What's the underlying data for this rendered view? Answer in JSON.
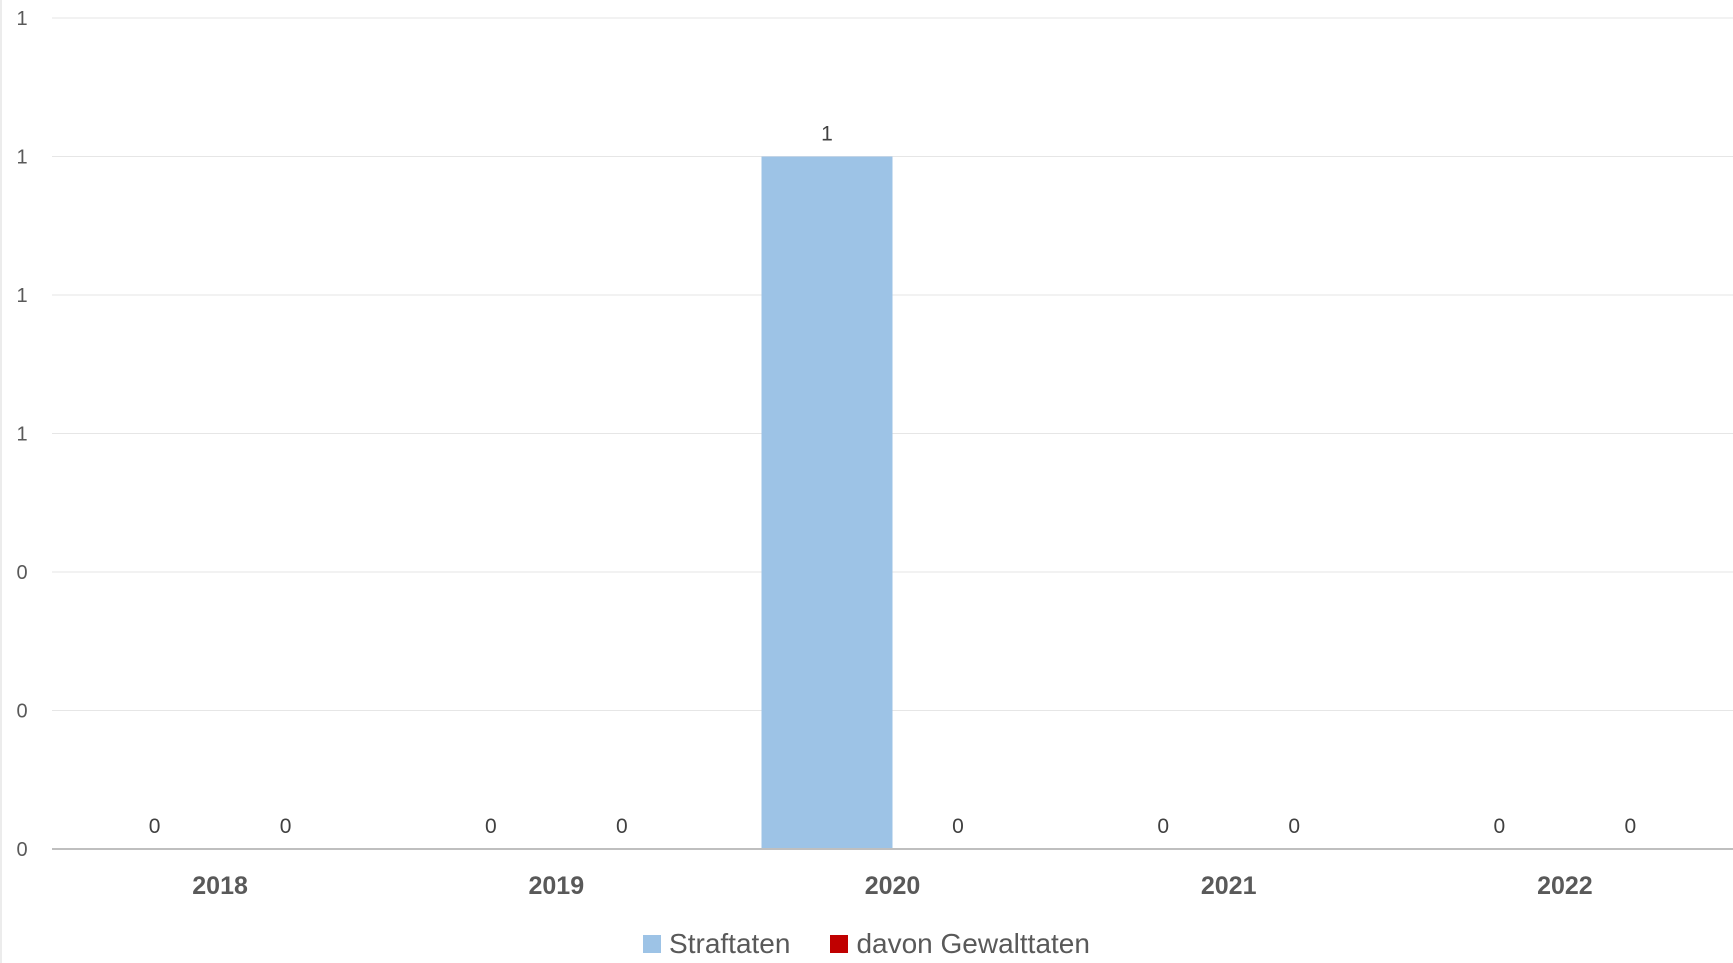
{
  "chart_data": {
    "type": "bar",
    "title": "",
    "xlabel": "",
    "ylabel": "",
    "categories": [
      "2018",
      "2019",
      "2020",
      "2021",
      "2022"
    ],
    "series": [
      {
        "name": "Straftaten",
        "values": [
          0,
          0,
          1,
          0,
          0
        ],
        "color": "#9DC3E6",
        "data_labels": [
          "0",
          "0",
          "1",
          "0",
          "0"
        ]
      },
      {
        "name": "davon Gewalttaten",
        "values": [
          0,
          0,
          0,
          0,
          0
        ],
        "color": "#C00000",
        "data_labels": [
          "0",
          "0",
          "0",
          "0",
          "0"
        ]
      }
    ],
    "ylim": [
      0,
      1.2
    ],
    "y_tick_values": [
      0,
      0.2,
      0.4,
      0.6,
      0.8,
      1.0,
      1.2
    ],
    "y_tick_labels": [
      "0",
      "0",
      "0",
      "1",
      "1",
      "1",
      "1"
    ],
    "grid": true,
    "legend_position": "bottom",
    "colors": {
      "gridline": "#E6E6E6",
      "axis": "#BFBFBF",
      "tick_label": "#595959",
      "category_label": "#595959",
      "data_label": "#404040"
    }
  }
}
